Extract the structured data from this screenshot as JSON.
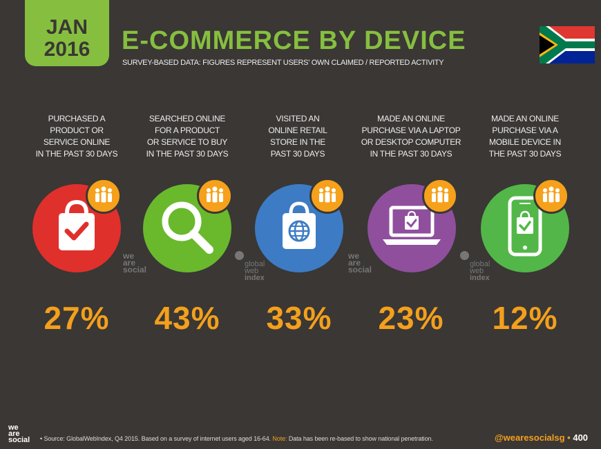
{
  "badge": {
    "month": "JAN",
    "year": "2016"
  },
  "title": "E-COMMERCE BY DEVICE",
  "subtitle": "SURVEY-BASED DATA: FIGURES REPRESENT USERS' OWN CLAIMED / REPORTED ACTIVITY",
  "columns": [
    {
      "lines": [
        "PURCHASED A",
        "PRODUCT OR",
        "SERVICE ONLINE",
        "IN THE PAST 30 DAYS"
      ],
      "percent": "27%",
      "color": "#e0302c",
      "icon": "shopping-bag-check-icon"
    },
    {
      "lines": [
        "SEARCHED ONLINE",
        "FOR A PRODUCT",
        "OR SERVICE TO BUY",
        "IN THE PAST 30 DAYS"
      ],
      "percent": "43%",
      "color": "#6ab92d",
      "icon": "magnifier-icon"
    },
    {
      "lines": [
        "VISITED AN",
        "ONLINE RETAIL",
        "STORE IN THE",
        "PAST 30 DAYS"
      ],
      "percent": "33%",
      "color": "#3d7cc4",
      "icon": "shopping-bag-globe-icon"
    },
    {
      "lines": [
        "MADE AN ONLINE",
        "PURCHASE VIA A LAPTOP",
        "OR DESKTOP COMPUTER",
        "IN THE PAST 30 DAYS"
      ],
      "percent": "23%",
      "color": "#8f4f9d",
      "icon": "laptop-bag-icon"
    },
    {
      "lines": [
        "MADE AN ONLINE",
        "PURCHASE VIA A",
        "MOBILE DEVICE IN",
        "THE PAST 30 DAYS"
      ],
      "percent": "12%",
      "color": "#52b748",
      "icon": "mobile-bag-icon"
    }
  ],
  "watermarks": {
    "we_are_social": [
      "we",
      "are",
      "social"
    ],
    "gwi": [
      "global",
      "web",
      "index"
    ]
  },
  "footer": {
    "logo": [
      "we",
      "are",
      "social"
    ],
    "source_prefix": "• Source: GlobalWebIndex, Q4 2015. Based on a survey of internet users aged 16-64.",
    "note_label": "Note:",
    "note_text": "Data has been re-based to show national penetration.",
    "handle": "@wearesocialsg",
    "page": "400"
  },
  "colors": {
    "background": "#3a3735",
    "accent_green": "#86bf3f",
    "accent_orange": "#f4a01c"
  }
}
